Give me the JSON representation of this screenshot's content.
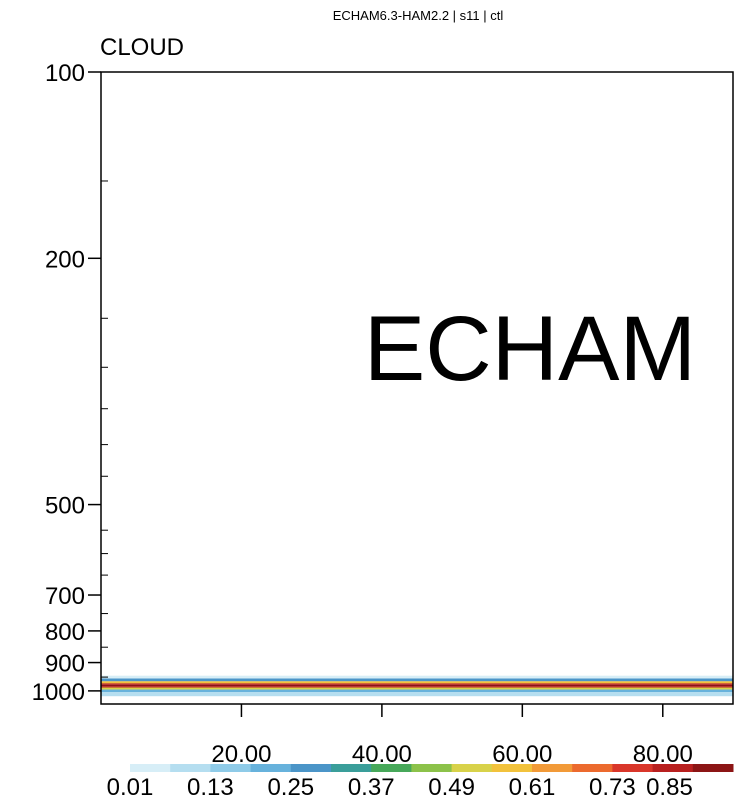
{
  "chart_data": {
    "type": "heatmap",
    "title": "ECHAM6.3-HAM2.2 | s11 | ctl",
    "variable_label": "CLOUD",
    "annotation": "ECHAM",
    "y_scale": "log",
    "y_reversed": true,
    "ylim": [
      100,
      1050
    ],
    "xlim": [
      0,
      90
    ],
    "ytick_labels": [
      100,
      200,
      500,
      700,
      800,
      900,
      1000
    ],
    "ytick_minor": [
      300,
      400,
      600
    ],
    "xtick_values": [
      20,
      40,
      60,
      80
    ],
    "xtick_labels": [
      "20.00",
      "40.00",
      "60.00",
      "80.00"
    ],
    "cloud_layer": {
      "description_levels_hpa": [
        950,
        960,
        970,
        975,
        980,
        985,
        990,
        1000,
        1010
      ],
      "values": [
        0.05,
        0.25,
        0.55,
        0.79,
        0.88,
        0.79,
        0.49,
        0.2,
        0.1
      ]
    },
    "colorbar": {
      "levels": [
        0.01,
        0.07,
        0.13,
        0.19,
        0.25,
        0.31,
        0.37,
        0.43,
        0.49,
        0.55,
        0.61,
        0.67,
        0.73,
        0.79,
        0.85
      ],
      "labels": [
        "0.01",
        "0.13",
        "0.25",
        "0.37",
        "0.49",
        "0.61",
        "0.73",
        "0.85"
      ],
      "colors": [
        "#d7eef7",
        "#b5def0",
        "#8fcbe8",
        "#67b2dc",
        "#4b95c8",
        "#3a9e9a",
        "#47a85a",
        "#8cc24a",
        "#d8d24a",
        "#f2c23c",
        "#f29a38",
        "#ec6a2e",
        "#d9362a",
        "#b8201f",
        "#8c1515"
      ]
    }
  }
}
